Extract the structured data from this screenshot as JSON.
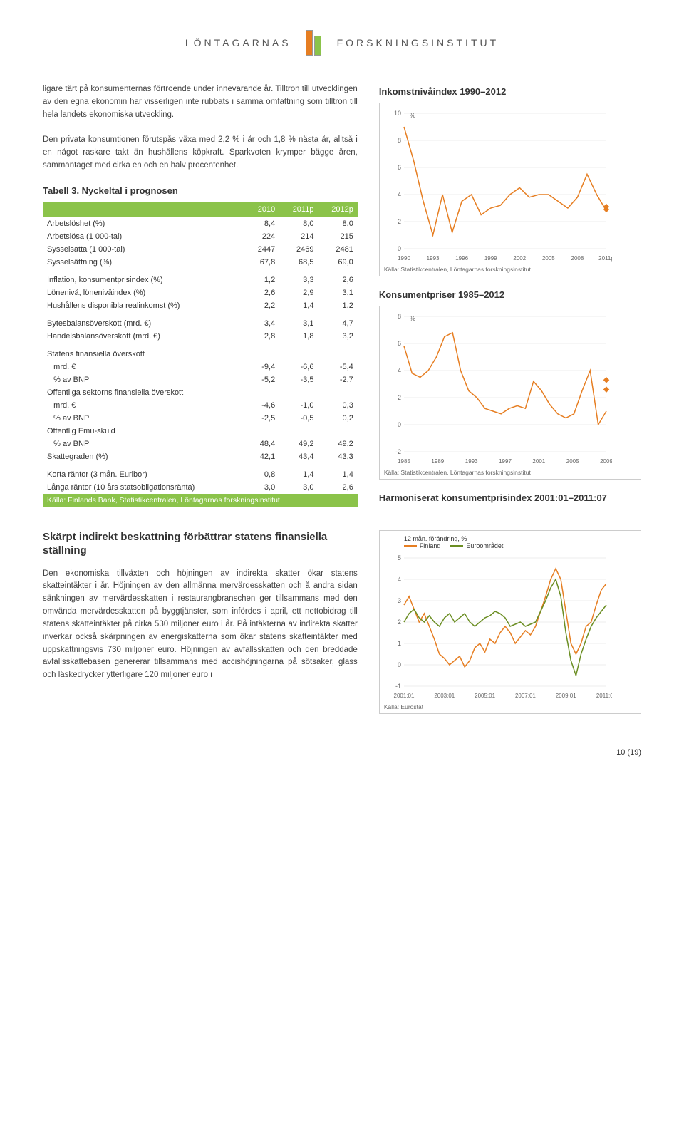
{
  "header": {
    "left": "LÖNTAGARNAS",
    "right": "FORSKNINGSINSTITUT"
  },
  "paragraph1": "ligare tärt på konsumenternas förtroende under innevarande år. Tilltron till utvecklingen av den egna ekonomin har visserligen inte rubbats i samma omfattning som tilltron till hela landets ekonomiska utveckling.",
  "paragraph2": "Den privata konsumtionen förutspås växa med 2,2 % i år och 1,8 % nästa år, alltså i en något raskare takt än hushållens köpkraft. Sparkvoten krymper bägge åren, sammantaget med cirka en och en halv procentenhet.",
  "table": {
    "title": "Tabell 3. Nyckeltal i prognosen",
    "cols": [
      "",
      "2010",
      "2011p",
      "2012p"
    ],
    "rows": [
      [
        "Arbetslöshet (%)",
        "8,4",
        "8,0",
        "8,0"
      ],
      [
        "Arbetslösa (1 000-tal)",
        "224",
        "214",
        "215"
      ],
      [
        "Sysselsatta (1 000-tal)",
        "2447",
        "2469",
        "2481"
      ],
      [
        "Sysselsättning (%)",
        "67,8",
        "68,5",
        "69,0"
      ]
    ],
    "rows2": [
      [
        "Inflation, konsumentprisindex (%)",
        "1,2",
        "3,3",
        "2,6"
      ],
      [
        "Lönenivå, lönenivåindex (%)",
        "2,6",
        "2,9",
        "3,1"
      ],
      [
        "Hushållens disponibla realinkomst (%)",
        "2,2",
        "1,4",
        "1,2"
      ]
    ],
    "rows3": [
      [
        "Bytesbalansöverskott (mrd. €)",
        "3,4",
        "3,1",
        "4,7"
      ],
      [
        "Handelsbalansöverskott (mrd. €)",
        "2,8",
        "1,8",
        "3,2"
      ]
    ],
    "rows4": [
      [
        "Statens finansiella överskott",
        "",
        "",
        ""
      ],
      [
        "   mrd. €",
        "-9,4",
        "-6,6",
        "-5,4"
      ],
      [
        "   % av BNP",
        "-5,2",
        "-3,5",
        "-2,7"
      ],
      [
        "Offentliga sektorns finansiella överskott",
        "",
        "",
        ""
      ],
      [
        "   mrd. €",
        "-4,6",
        "-1,0",
        "0,3"
      ],
      [
        "   % av BNP",
        "-2,5",
        "-0,5",
        "0,2"
      ],
      [
        "Offentlig Emu-skuld",
        "",
        "",
        ""
      ],
      [
        "   % av BNP",
        "48,4",
        "49,2",
        "49,2"
      ],
      [
        "Skattegraden (%)",
        "42,1",
        "43,4",
        "43,3"
      ]
    ],
    "rows5": [
      [
        "Korta räntor (3 mån. Euribor)",
        "0,8",
        "1,4",
        "1,4"
      ],
      [
        "Långa räntor (10 års statsobligationsränta)",
        "3,0",
        "3,0",
        "2,6"
      ]
    ],
    "source": "Källa: Finlands Bank, Statistikcentralen, Löntagarnas forskningsinstitut"
  },
  "chart1": {
    "title": "Inkomstnivåindex 1990–2012",
    "ylabel": "%",
    "yticks": [
      0,
      2,
      4,
      6,
      8,
      10
    ],
    "xticks": [
      "1990",
      "1993",
      "1996",
      "1999",
      "2002",
      "2005",
      "2008",
      "2011p"
    ],
    "line_color": "#e67e22",
    "marker_color": "#e67e22",
    "data": [
      9.0,
      6.5,
      3.5,
      1.0,
      4.0,
      1.2,
      3.5,
      4.0,
      2.5,
      3.0,
      3.2,
      4.0,
      4.5,
      3.8,
      4.0,
      4.0,
      3.5,
      3.0,
      3.8,
      5.5,
      4.0,
      2.8
    ],
    "markers_x": [
      21,
      22
    ],
    "markers_y": [
      2.9,
      3.1
    ],
    "source": "Källa: Statistikcentralen, Löntagarnas forskningsinstitut"
  },
  "chart2": {
    "title": "Konsumentpriser 1985–2012",
    "ylabel": "%",
    "yticks": [
      -2,
      0,
      2,
      4,
      6,
      8
    ],
    "xticks": [
      "1985",
      "1989",
      "1993",
      "1997",
      "2001",
      "2005",
      "2009"
    ],
    "line_color": "#e67e22",
    "marker_color": "#e67e22",
    "data": [
      5.8,
      3.8,
      3.5,
      4.0,
      5.0,
      6.5,
      6.8,
      4.0,
      2.5,
      2.0,
      1.2,
      1.0,
      0.8,
      1.2,
      1.4,
      1.2,
      3.2,
      2.5,
      1.5,
      0.8,
      0.5,
      0.8,
      2.5,
      4.0,
      0.0,
      1.0
    ],
    "markers_x": [
      26,
      27
    ],
    "markers_y": [
      3.3,
      2.6
    ],
    "source": "Källa: Statistikcentralen, Löntagarnas forskningsinstitut"
  },
  "chart3": {
    "title": "Harmoniserat konsumentprisindex 2001:01–2011:07",
    "legend_title": "12 mån. förändring, %",
    "series": [
      {
        "name": "Finland",
        "color": "#e67e22"
      },
      {
        "name": "Euroområdet",
        "color": "#6b8e23"
      }
    ],
    "yticks": [
      -1,
      0,
      1,
      2,
      3,
      4,
      5
    ],
    "xticks": [
      "2001:01",
      "2003:01",
      "2005:01",
      "2007:01",
      "2009:01",
      "2011:01"
    ],
    "finland": [
      2.8,
      3.2,
      2.6,
      2.0,
      2.4,
      1.8,
      1.2,
      0.5,
      0.3,
      0.0,
      0.2,
      0.4,
      -0.1,
      0.2,
      0.8,
      1.0,
      0.6,
      1.2,
      1.0,
      1.5,
      1.8,
      1.5,
      1.0,
      1.3,
      1.6,
      1.4,
      1.8,
      2.5,
      3.2,
      4.0,
      4.5,
      4.0,
      2.5,
      1.0,
      0.5,
      1.0,
      1.8,
      2.0,
      2.8,
      3.5,
      3.8
    ],
    "euro": [
      2.0,
      2.4,
      2.6,
      2.2,
      2.0,
      2.3,
      2.0,
      1.8,
      2.2,
      2.4,
      2.0,
      2.2,
      2.4,
      2.0,
      1.8,
      2.0,
      2.2,
      2.3,
      2.5,
      2.4,
      2.2,
      1.8,
      1.9,
      2.0,
      1.8,
      1.9,
      2.0,
      2.5,
      3.0,
      3.6,
      4.0,
      3.2,
      1.5,
      0.2,
      -0.5,
      0.5,
      1.2,
      1.8,
      2.2,
      2.5,
      2.8
    ],
    "source": "Källa: Eurostat"
  },
  "bottom": {
    "title": "Skärpt indirekt beskattning förbättrar statens finansiella ställning",
    "text": "Den ekonomiska tillväxten och höjningen av indirekta skatter ökar statens skatteintäkter i år. Höjningen av den allmänna mervärdesskatten och å andra sidan sänkningen av mervärdesskatten i restaurangbranschen ger tillsammans med den omvända mervärdesskatten på byggtjänster, som infördes i april, ett nettobidrag till statens skatteintäkter på cirka 530 miljoner euro i år. På intäkterna av indirekta skatter inverkar också skärpningen av energiskatterna som ökar statens skatteintäkter med uppskattningsvis 730 miljoner euro. Höjningen av avfallsskatten och den breddade avfallsskattebasen genererar tillsammans med accishöjningarna på sötsaker, glass och läskedrycker ytterligare 120 miljoner euro i"
  },
  "footer": "10 (19)"
}
